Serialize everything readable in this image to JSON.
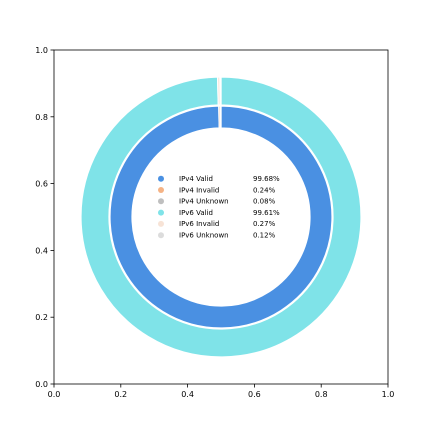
{
  "chart_data": {
    "type": "pie",
    "subtype": "nested-donut",
    "title": "",
    "xlabel": "",
    "ylabel": "",
    "xlim": [
      0,
      1
    ],
    "ylim": [
      0,
      1
    ],
    "xticks": [
      "0.0",
      "0.2",
      "0.4",
      "0.6",
      "0.8",
      "1.0"
    ],
    "yticks": [
      "0.0",
      "0.2",
      "0.4",
      "0.6",
      "0.8",
      "1.0"
    ],
    "legend_placement": "center",
    "grid": false,
    "rings": [
      {
        "ring": "outer",
        "slices": [
          {
            "label": "IPv6 Valid",
            "value": 99.61,
            "pct": "99.61%",
            "color": "#7fe3e8"
          },
          {
            "label": "IPv6 Invalid",
            "value": 0.27,
            "pct": "0.27%",
            "color": "#f7e3d6"
          },
          {
            "label": "IPv6 Unknown",
            "value": 0.12,
            "pct": "0.12%",
            "color": "#dcdcdc"
          }
        ]
      },
      {
        "ring": "inner",
        "slices": [
          {
            "label": "IPv4 Valid",
            "value": 99.68,
            "pct": "99.68%",
            "color": "#4a90e2"
          },
          {
            "label": "IPv4 Invalid",
            "value": 0.24,
            "pct": "0.24%",
            "color": "#f5b385"
          },
          {
            "label": "IPv4 Unknown",
            "value": 0.08,
            "pct": "0.08%",
            "color": "#bfbfbf"
          }
        ]
      }
    ],
    "legend": [
      {
        "label": "IPv4 Valid",
        "pct": "99.68%",
        "color": "#4a90e2"
      },
      {
        "label": "IPv4 Invalid",
        "pct": "0.24%",
        "color": "#f5b385"
      },
      {
        "label": "IPv4 Unknown",
        "pct": "0.08%",
        "color": "#bfbfbf"
      },
      {
        "label": "IPv6 Valid",
        "pct": "99.61%",
        "color": "#7fe3e8"
      },
      {
        "label": "IPv6 Invalid",
        "pct": "0.27%",
        "color": "#f7e3d6"
      },
      {
        "label": "IPv6 Unknown",
        "pct": "0.12%",
        "color": "#dcdcdc"
      }
    ]
  }
}
